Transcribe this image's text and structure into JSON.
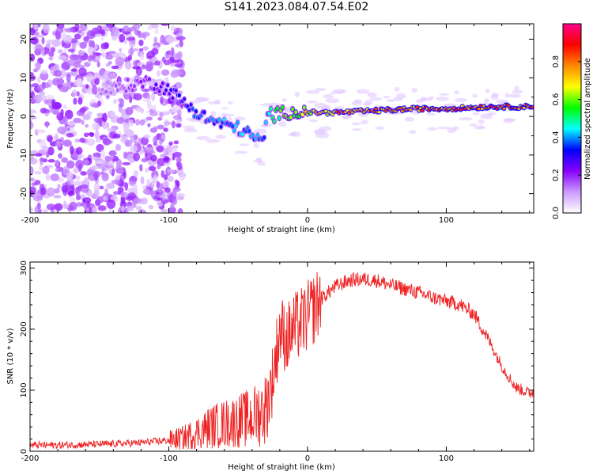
{
  "title": "S141.2023.084.07.54.E02",
  "chart_data": [
    {
      "type": "heatmap",
      "title": "S141.2023.084.07.54.E02",
      "xlabel": "Height of straight line (km)",
      "ylabel": "Frequency (Hz)",
      "xlim": [
        -200,
        163
      ],
      "ylim": [
        -25,
        24
      ],
      "x_ticks": [
        "-200",
        "-100",
        "0",
        "100"
      ],
      "y_ticks": [
        "20",
        "10",
        "0",
        "-10",
        "-20"
      ],
      "colorbar": {
        "label": "Normalized spectral amplitude",
        "range": [
          0,
          1
        ],
        "ticks": [
          "0.0",
          "0.2",
          "0.4",
          "0.6",
          "0.8"
        ],
        "colors": [
          "#ffffff",
          "#cc99ff",
          "#8800ff",
          "#0000ff",
          "#00ffff",
          "#00ff00",
          "#ffff00",
          "#ff8800",
          "#ff0000",
          "#ff0088"
        ]
      },
      "ridge": {
        "x": [
          -150,
          -130,
          -115,
          -100,
          -90,
          -80,
          -70,
          -60,
          -50,
          -40,
          -32,
          -28,
          -25,
          -20,
          -10,
          0,
          20,
          50,
          80,
          100,
          130,
          163
        ],
        "y": [
          6,
          8,
          9,
          7,
          4,
          1,
          -1,
          -2,
          -3,
          -5,
          -7,
          2,
          0,
          1,
          1,
          1,
          1,
          1.5,
          2,
          2,
          2.5,
          2.5
        ],
        "amplitude": [
          0.15,
          0.2,
          0.25,
          0.3,
          0.35,
          0.4,
          0.4,
          0.45,
          0.45,
          0.45,
          0.4,
          0.5,
          0.55,
          0.6,
          0.7,
          0.75,
          0.85,
          0.9,
          0.9,
          0.9,
          0.95,
          0.95
        ]
      }
    },
    {
      "type": "line",
      "xlabel": "Height of straight line (km)",
      "ylabel": "SNR (10 * v/v)",
      "xlim": [
        -200,
        163
      ],
      "ylim": [
        0,
        310
      ],
      "x_ticks": [
        "-200",
        "-100",
        "0",
        "100"
      ],
      "y_ticks": [
        "0",
        "100",
        "200",
        "300"
      ],
      "color": "#ee2222",
      "series": [
        {
          "x": [
            -200,
            -180,
            -160,
            -140,
            -120,
            -100,
            -90,
            -80,
            -70,
            -60,
            -50,
            -40,
            -30,
            -25,
            -20,
            -15,
            -10,
            0,
            10,
            20,
            30,
            40,
            50,
            60,
            70,
            80,
            90,
            100,
            110,
            120,
            130,
            140,
            150,
            160,
            163
          ],
          "values": [
            10,
            10,
            11,
            12,
            14,
            18,
            22,
            30,
            40,
            45,
            50,
            55,
            70,
            120,
            200,
            185,
            200,
            220,
            250,
            270,
            280,
            282,
            280,
            272,
            266,
            260,
            252,
            246,
            240,
            225,
            185,
            140,
            105,
            95,
            98
          ]
        }
      ]
    }
  ]
}
